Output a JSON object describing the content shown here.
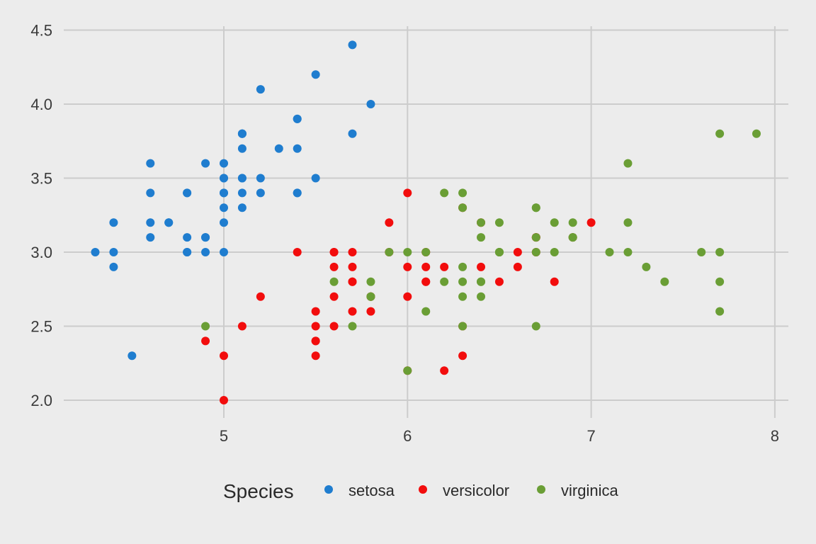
{
  "chart_data": {
    "type": "scatter",
    "title": "",
    "xlabel": "",
    "ylabel": "",
    "xlim": [
      4.2,
      8.1
    ],
    "ylim": [
      1.9,
      4.55
    ],
    "x_ticks": [
      5,
      6,
      7,
      8
    ],
    "x_tick_labels": [
      "5",
      "6",
      "7",
      "8"
    ],
    "y_ticks": [
      2.0,
      2.5,
      3.0,
      3.5,
      4.0,
      4.5
    ],
    "y_tick_labels": [
      "2.0",
      "2.5",
      "3.0",
      "3.5",
      "4.0",
      "4.5"
    ],
    "grid": true,
    "background_color": "#ececec",
    "grid_color": "#cccccc",
    "legend": {
      "title": "Species",
      "position": "bottom"
    },
    "series": [
      {
        "name": "setosa",
        "color": "#1f7dcf",
        "points": [
          [
            5.1,
            3.5
          ],
          [
            4.9,
            3.0
          ],
          [
            4.7,
            3.2
          ],
          [
            4.6,
            3.1
          ],
          [
            5.0,
            3.6
          ],
          [
            5.4,
            3.9
          ],
          [
            4.6,
            3.4
          ],
          [
            5.0,
            3.4
          ],
          [
            4.4,
            2.9
          ],
          [
            4.9,
            3.1
          ],
          [
            5.4,
            3.7
          ],
          [
            4.8,
            3.4
          ],
          [
            4.8,
            3.0
          ],
          [
            4.3,
            3.0
          ],
          [
            5.8,
            4.0
          ],
          [
            5.7,
            4.4
          ],
          [
            5.4,
            3.9
          ],
          [
            5.1,
            3.5
          ],
          [
            5.7,
            3.8
          ],
          [
            5.1,
            3.8
          ],
          [
            5.4,
            3.4
          ],
          [
            5.1,
            3.7
          ],
          [
            4.6,
            3.6
          ],
          [
            5.1,
            3.3
          ],
          [
            4.8,
            3.4
          ],
          [
            5.0,
            3.0
          ],
          [
            5.0,
            3.4
          ],
          [
            5.2,
            3.5
          ],
          [
            5.2,
            3.4
          ],
          [
            4.7,
            3.2
          ],
          [
            4.8,
            3.1
          ],
          [
            5.4,
            3.4
          ],
          [
            5.2,
            4.1
          ],
          [
            5.5,
            4.2
          ],
          [
            4.9,
            3.1
          ],
          [
            5.0,
            3.2
          ],
          [
            5.5,
            3.5
          ],
          [
            4.9,
            3.6
          ],
          [
            4.4,
            3.0
          ],
          [
            5.1,
            3.4
          ],
          [
            5.0,
            3.5
          ],
          [
            4.5,
            2.3
          ],
          [
            4.4,
            3.2
          ],
          [
            5.0,
            3.5
          ],
          [
            5.1,
            3.8
          ],
          [
            4.8,
            3.0
          ],
          [
            5.1,
            3.8
          ],
          [
            4.6,
            3.2
          ],
          [
            5.3,
            3.7
          ],
          [
            5.0,
            3.3
          ]
        ]
      },
      {
        "name": "versicolor",
        "color": "#f20d0d",
        "points": [
          [
            7.0,
            3.2
          ],
          [
            6.4,
            3.2
          ],
          [
            6.9,
            3.1
          ],
          [
            5.5,
            2.3
          ],
          [
            6.5,
            2.8
          ],
          [
            5.7,
            2.8
          ],
          [
            6.3,
            3.3
          ],
          [
            4.9,
            2.4
          ],
          [
            6.6,
            2.9
          ],
          [
            5.2,
            2.7
          ],
          [
            5.0,
            2.0
          ],
          [
            5.9,
            3.0
          ],
          [
            6.0,
            2.2
          ],
          [
            6.1,
            2.9
          ],
          [
            5.6,
            2.9
          ],
          [
            6.7,
            3.1
          ],
          [
            5.6,
            3.0
          ],
          [
            5.8,
            2.7
          ],
          [
            6.2,
            2.2
          ],
          [
            5.6,
            2.5
          ],
          [
            5.9,
            3.2
          ],
          [
            6.1,
            2.8
          ],
          [
            6.3,
            2.5
          ],
          [
            6.1,
            2.8
          ],
          [
            6.4,
            2.9
          ],
          [
            6.6,
            3.0
          ],
          [
            6.8,
            2.8
          ],
          [
            6.7,
            3.0
          ],
          [
            6.0,
            2.9
          ],
          [
            5.7,
            2.6
          ],
          [
            5.5,
            2.4
          ],
          [
            5.5,
            2.4
          ],
          [
            5.8,
            2.7
          ],
          [
            6.0,
            2.7
          ],
          [
            5.4,
            3.0
          ],
          [
            6.0,
            3.4
          ],
          [
            6.7,
            3.1
          ],
          [
            6.3,
            2.3
          ],
          [
            5.6,
            3.0
          ],
          [
            5.5,
            2.5
          ],
          [
            5.5,
            2.6
          ],
          [
            6.1,
            3.0
          ],
          [
            5.8,
            2.6
          ],
          [
            5.0,
            2.3
          ],
          [
            5.6,
            2.7
          ],
          [
            5.7,
            3.0
          ],
          [
            5.7,
            2.9
          ],
          [
            6.2,
            2.9
          ],
          [
            5.1,
            2.5
          ],
          [
            5.7,
            2.8
          ]
        ]
      },
      {
        "name": "virginica",
        "color": "#6a9e35",
        "points": [
          [
            6.3,
            3.3
          ],
          [
            5.8,
            2.7
          ],
          [
            7.1,
            3.0
          ],
          [
            6.3,
            2.9
          ],
          [
            6.5,
            3.0
          ],
          [
            7.6,
            3.0
          ],
          [
            4.9,
            2.5
          ],
          [
            7.3,
            2.9
          ],
          [
            6.7,
            2.5
          ],
          [
            7.2,
            3.6
          ],
          [
            6.5,
            3.2
          ],
          [
            6.4,
            2.7
          ],
          [
            6.8,
            3.0
          ],
          [
            5.7,
            2.5
          ],
          [
            5.8,
            2.8
          ],
          [
            6.4,
            3.2
          ],
          [
            6.5,
            3.0
          ],
          [
            7.7,
            3.8
          ],
          [
            7.7,
            2.6
          ],
          [
            6.0,
            2.2
          ],
          [
            6.9,
            3.2
          ],
          [
            5.6,
            2.8
          ],
          [
            7.7,
            2.8
          ],
          [
            6.3,
            2.7
          ],
          [
            6.7,
            3.3
          ],
          [
            7.2,
            3.2
          ],
          [
            6.2,
            2.8
          ],
          [
            6.1,
            3.0
          ],
          [
            6.4,
            2.8
          ],
          [
            7.2,
            3.0
          ],
          [
            7.4,
            2.8
          ],
          [
            7.9,
            3.8
          ],
          [
            6.4,
            2.8
          ],
          [
            6.3,
            2.8
          ],
          [
            6.1,
            2.6
          ],
          [
            7.7,
            3.0
          ],
          [
            6.3,
            3.4
          ],
          [
            6.4,
            3.1
          ],
          [
            6.0,
            3.0
          ],
          [
            6.9,
            3.1
          ],
          [
            6.7,
            3.1
          ],
          [
            6.9,
            3.1
          ],
          [
            5.8,
            2.7
          ],
          [
            6.8,
            3.2
          ],
          [
            6.7,
            3.3
          ],
          [
            6.7,
            3.0
          ],
          [
            6.3,
            2.5
          ],
          [
            6.5,
            3.0
          ],
          [
            6.2,
            3.4
          ],
          [
            5.9,
            3.0
          ]
        ]
      }
    ]
  }
}
